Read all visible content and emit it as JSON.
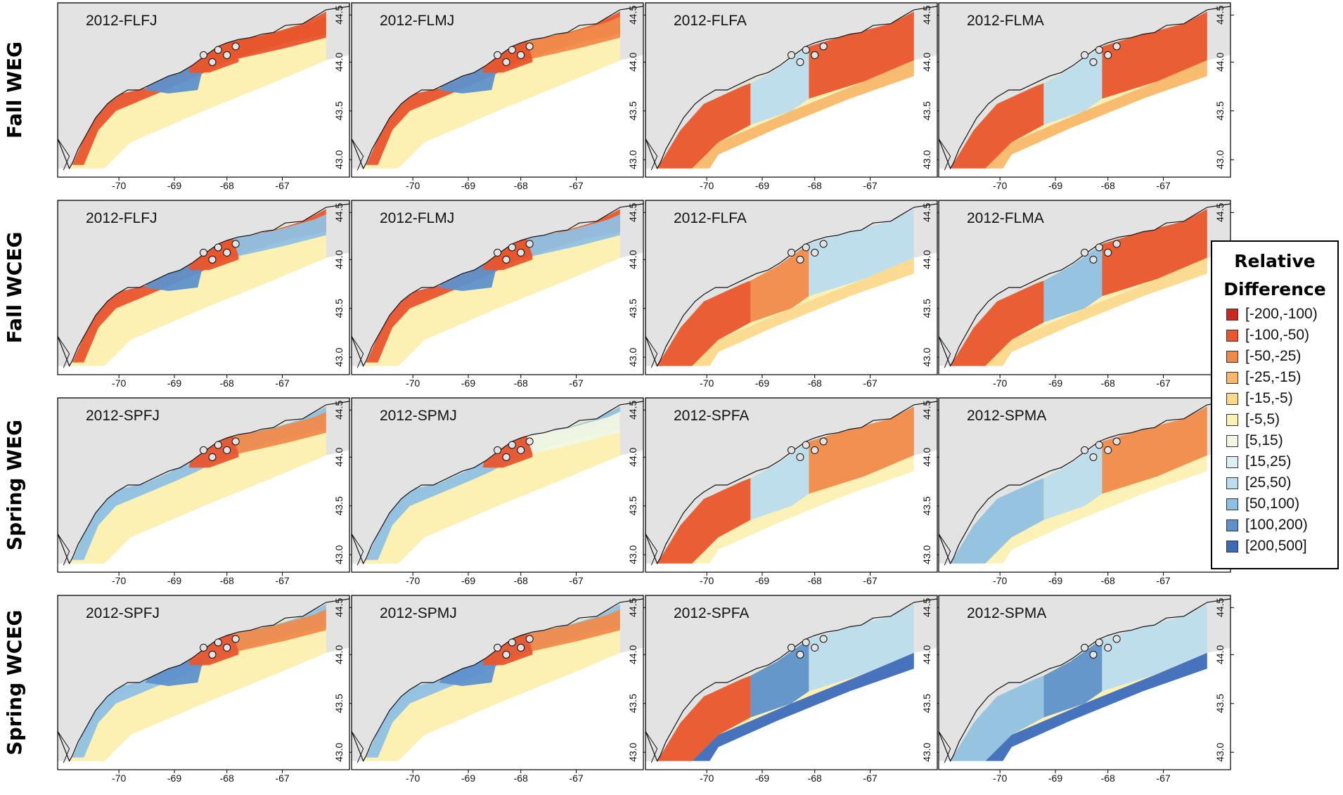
{
  "rows": [
    {
      "label": "Fall WEG",
      "panels": [
        "2012-FLFJ",
        "2012-FLMJ",
        "2012-FLFA",
        "2012-FLMA"
      ]
    },
    {
      "label": "Fall WCEG",
      "panels": [
        "2012-FLFJ",
        "2012-FLMJ",
        "2012-FLFA",
        "2012-FLMA"
      ]
    },
    {
      "label": "Spring WEG",
      "panels": [
        "2012-SPFJ",
        "2012-SPMJ",
        "2012-SPFA",
        "2012-SPMA"
      ]
    },
    {
      "label": "Spring WCEG",
      "panels": [
        "2012-SPFJ",
        "2012-SPMJ",
        "2012-SPFA",
        "2012-SPMA"
      ]
    }
  ],
  "x_ticks": [
    "-70",
    "-69",
    "-68",
    "-67"
  ],
  "y_ticks": [
    "43.0",
    "43.5",
    "44.0",
    "44.5"
  ],
  "legend": {
    "title_line1": "Relative",
    "title_line2": "Difference",
    "items": [
      {
        "label": "[-200,-100)",
        "color": "#c8281e"
      },
      {
        "label": "[-100,-50)",
        "color": "#e8552e"
      },
      {
        "label": "[-50,-25)",
        "color": "#f08a4b"
      },
      {
        "label": "[-25,-15)",
        "color": "#f7b867"
      },
      {
        "label": "[-15,-5)",
        "color": "#fbd98b"
      },
      {
        "label": "[-5,5)",
        "color": "#fcf1b3"
      },
      {
        "label": "[5,15)",
        "color": "#f1f7e2"
      },
      {
        "label": "[15,25)",
        "color": "#ddeef5"
      },
      {
        "label": "[25,50)",
        "color": "#bcdcef"
      },
      {
        "label": "[50,100)",
        "color": "#8fc0e3"
      },
      {
        "label": "[100,200)",
        "color": "#5e91cc"
      },
      {
        "label": "[200,500]",
        "color": "#3d6ab8"
      }
    ]
  },
  "colors": {
    "land": "#e3e3e3",
    "domain": "#fcf1b3"
  }
}
